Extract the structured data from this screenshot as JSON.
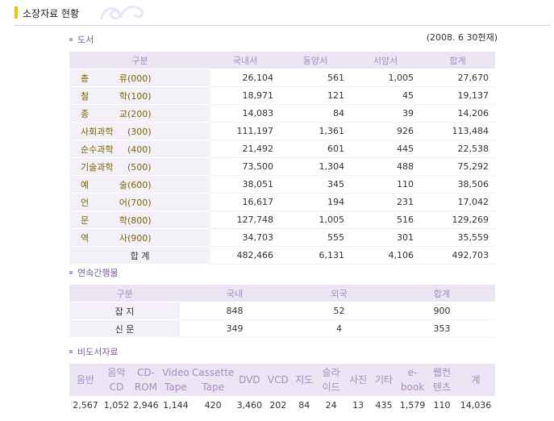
{
  "page": {
    "title": "소장자료 현황"
  },
  "books": {
    "section_label": "도서",
    "date_note": "(2008. 6 30현재)",
    "headers": [
      "구분",
      "국내서",
      "동양서",
      "서양서",
      "합계"
    ],
    "rows": [
      {
        "category": "총    류",
        "code": "(000)",
        "values": [
          "26,104",
          "561",
          "1,005",
          "27,670"
        ]
      },
      {
        "category": "철    학",
        "code": "(100)",
        "values": [
          "18,971",
          "121",
          "45",
          "19,137"
        ]
      },
      {
        "category": "종    교",
        "code": "(200)",
        "values": [
          "14,083",
          "84",
          "39",
          "14,206"
        ]
      },
      {
        "category": "사회과학",
        "code": "(300)",
        "values": [
          "111,197",
          "1,361",
          "926",
          "113,484"
        ]
      },
      {
        "category": "순수과학",
        "code": "(400)",
        "values": [
          "21,492",
          "601",
          "445",
          "22,538"
        ]
      },
      {
        "category": "기술과학",
        "code": "(500)",
        "values": [
          "73,500",
          "1,304",
          "488",
          "75,292"
        ]
      },
      {
        "category": "예    술",
        "code": "(600)",
        "values": [
          "38,051",
          "345",
          "110",
          "38,506"
        ]
      },
      {
        "category": "언    어",
        "code": "(700)",
        "values": [
          "16,617",
          "194",
          "231",
          "17,042"
        ]
      },
      {
        "category": "문    학",
        "code": "(800)",
        "values": [
          "127,748",
          "1,005",
          "516",
          "129,269"
        ]
      },
      {
        "category": "역    사",
        "code": "(900)",
        "values": [
          "34,703",
          "555",
          "301",
          "35,559"
        ]
      }
    ],
    "total": {
      "label": "합 계",
      "values": [
        "482,466",
        "6,131",
        "4,106",
        "492,703"
      ]
    }
  },
  "serials": {
    "section_label": "연속간행물",
    "headers": [
      "구분",
      "국내",
      "외국",
      "합계"
    ],
    "rows": [
      {
        "category": "잡 지",
        "values": [
          "848",
          "52",
          "900"
        ]
      },
      {
        "category": "신 문",
        "values": [
          "349",
          "4",
          "353"
        ]
      }
    ]
  },
  "nonbook": {
    "section_label": "비도서자료",
    "headers": [
      "음반",
      "음악 CD",
      "CD- ROM",
      "Video Tape",
      "Cassette Tape",
      "DVD",
      "VCD",
      "지도",
      "슬라 이드",
      "사진",
      "기타",
      "e- book",
      "웹컨 텐츠",
      "계"
    ],
    "values": [
      "2,567",
      "1,052",
      "2,946",
      "1,144",
      "420",
      "3,460",
      "202",
      "84",
      "24",
      "13",
      "435",
      "1,579",
      "110",
      "14,036"
    ]
  }
}
